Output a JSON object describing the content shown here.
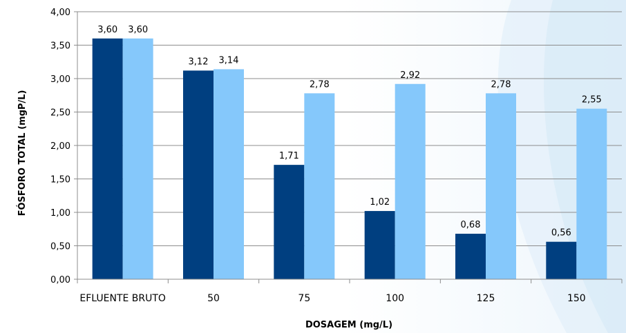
{
  "chart_data": {
    "type": "bar",
    "categories": [
      "EFLUENTE BRUTO",
      "50",
      "75",
      "100",
      "125",
      "150"
    ],
    "series": [
      {
        "values": [
          3.6,
          3.12,
          1.71,
          1.02,
          0.68,
          0.56
        ],
        "color": "#003F80"
      },
      {
        "values": [
          3.6,
          3.14,
          2.78,
          2.92,
          2.78,
          2.55
        ],
        "color": "#85C8FB"
      }
    ],
    "data_labels": [
      [
        "3,60",
        "3,12",
        "1,71",
        "1,02",
        "0,68",
        "0,56"
      ],
      [
        "3,60",
        "3,14",
        "2,78",
        "2,92",
        "2,78",
        "2,55"
      ]
    ],
    "xlabel": "DOSAGEM (mg/L)",
    "ylabel": "FÓSFORO TOTAL (mgP/L)",
    "ylim": [
      0,
      4
    ],
    "yticks": [
      "0,00",
      "0,50",
      "1,00",
      "1,50",
      "2,00",
      "2,50",
      "3,00",
      "3,50",
      "4,00"
    ],
    "grid": true,
    "legend": "none"
  }
}
